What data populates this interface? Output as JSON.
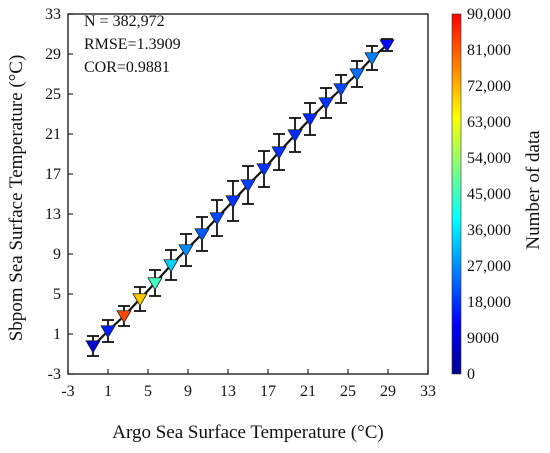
{
  "chart_data": {
    "type": "scatter",
    "xlabel": "Argo Sea Surface Temperature (°C)",
    "ylabel": "Sbpom Sea Surface Temperature (°C)",
    "xlim": [
      -3,
      33
    ],
    "ylim": [
      -3,
      33
    ],
    "x_ticks": [
      "-3",
      "1",
      "5",
      "9",
      "13",
      "17",
      "21",
      "25",
      "29",
      "33"
    ],
    "y_ticks": [
      "-3",
      "1",
      "5",
      "9",
      "13",
      "17",
      "21",
      "25",
      "29",
      "33"
    ],
    "annotations": [
      "N = 382,972",
      "RMSE=1.3909",
      "COR=0.9881"
    ],
    "colorbar": {
      "label": "Number of data",
      "min": 0,
      "max": 90000,
      "ticks": [
        "90,000",
        "81,000",
        "72,000",
        "63,000",
        "54,000",
        "45,000",
        "36,000",
        "27,000",
        "18,000",
        "9000",
        "0"
      ]
    },
    "points": [
      {
        "x": -0.5,
        "y": -0.2,
        "err": 1.0,
        "count": 8000
      },
      {
        "x": 1.0,
        "y": 1.3,
        "err": 1.1,
        "count": 16000
      },
      {
        "x": 2.6,
        "y": 2.8,
        "err": 1.0,
        "count": 83000
      },
      {
        "x": 4.2,
        "y": 4.5,
        "err": 1.2,
        "count": 70000
      },
      {
        "x": 5.7,
        "y": 6.1,
        "err": 1.3,
        "count": 45000
      },
      {
        "x": 7.3,
        "y": 7.9,
        "err": 1.5,
        "count": 34000
      },
      {
        "x": 8.8,
        "y": 9.4,
        "err": 1.6,
        "count": 27000
      },
      {
        "x": 10.4,
        "y": 11.0,
        "err": 1.7,
        "count": 22000
      },
      {
        "x": 11.9,
        "y": 12.6,
        "err": 1.8,
        "count": 20000
      },
      {
        "x": 13.5,
        "y": 14.3,
        "err": 2.0,
        "count": 18000
      },
      {
        "x": 15.0,
        "y": 15.9,
        "err": 1.9,
        "count": 19000
      },
      {
        "x": 16.6,
        "y": 17.5,
        "err": 1.8,
        "count": 18000
      },
      {
        "x": 18.1,
        "y": 19.2,
        "err": 1.8,
        "count": 18000
      },
      {
        "x": 19.7,
        "y": 20.9,
        "err": 1.7,
        "count": 17000
      },
      {
        "x": 21.2,
        "y": 22.5,
        "err": 1.6,
        "count": 17000
      },
      {
        "x": 22.8,
        "y": 24.1,
        "err": 1.5,
        "count": 18000
      },
      {
        "x": 24.3,
        "y": 25.5,
        "err": 1.4,
        "count": 20000
      },
      {
        "x": 25.9,
        "y": 27.0,
        "err": 1.3,
        "count": 24000
      },
      {
        "x": 27.4,
        "y": 28.6,
        "err": 1.2,
        "count": 26000
      },
      {
        "x": 28.9,
        "y": 29.9,
        "err": 0.6,
        "count": 14000
      }
    ],
    "grid": false,
    "legend": "none",
    "colormap": [
      "#00008f",
      "#0000ff",
      "#0080ff",
      "#00ffff",
      "#80ff80",
      "#ffff00",
      "#ff8000",
      "#ff0000"
    ]
  }
}
